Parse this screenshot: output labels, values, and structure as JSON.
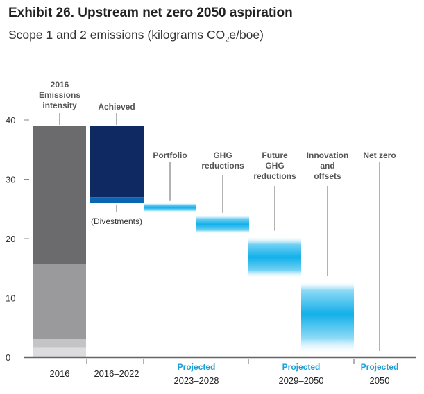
{
  "title": "Exhibit 26. Upstream net zero 2050 aspiration",
  "subtitle_prefix": "Scope 1 and 2 emissions (kilograms CO",
  "subtitle_sub": "2",
  "subtitle_suffix": "e/boe)",
  "colors": {
    "dark_gray": "#6b6b6e",
    "mid_gray": "#9a9a9d",
    "light_gray": "#c4c4c6",
    "lighter_gray": "#dcdcde",
    "navy": "#0f2a63",
    "blue": "#0a66b0",
    "cyan": "#1bb3ea",
    "projected": "#1e9fd6"
  },
  "chart_data": {
    "type": "waterfall",
    "ylim": [
      0,
      40
    ],
    "yticks": [
      0,
      10,
      20,
      30,
      40
    ],
    "stages": [
      {
        "label": "2016\nEmissions\nintensity",
        "start": 0,
        "end": 39,
        "total": true,
        "segments": [
          [
            0,
            1.7
          ],
          [
            1.7,
            3.1
          ],
          [
            3.1,
            15.7
          ],
          [
            15.7,
            39
          ]
        ]
      },
      {
        "label": "Achieved",
        "start": 27,
        "end": 39
      },
      {
        "label": "(Divestments)",
        "start": 26,
        "end": 27
      },
      {
        "label": "Portfolio",
        "start": 24.5,
        "end": 26
      },
      {
        "label": "GHG\nreductions",
        "start": 20.8,
        "end": 24
      },
      {
        "label": "Future\nGHG\nreductions",
        "start": 13.3,
        "end": 20.4
      },
      {
        "label": "Innovation\nand\noffsets",
        "start": 0.5,
        "end": 12.8
      },
      {
        "label": "Net zero",
        "start": 0,
        "end": 0
      }
    ],
    "x_groups": [
      {
        "projected": "",
        "label": "2016"
      },
      {
        "projected": "",
        "label": "2016–2022"
      },
      {
        "projected": "Projected",
        "label": "2023–2028"
      },
      {
        "projected": "Projected",
        "label": "2029–2050"
      },
      {
        "projected": "Projected",
        "label": "2050"
      }
    ]
  }
}
